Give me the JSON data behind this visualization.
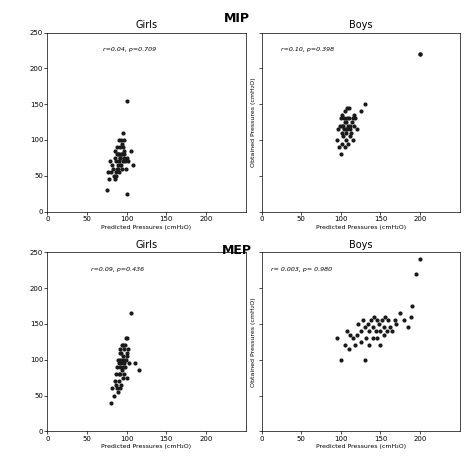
{
  "title_mip": "MIP",
  "title_mep": "MEP",
  "subplot_titles": [
    "Girls",
    "Boys",
    "Girls",
    "Boys"
  ],
  "annotations": [
    "r=0.04, p=0.709",
    "r=0.10, p=0.398",
    "r=0.09, p=0.436",
    "r= 0.003, p= 0.980"
  ],
  "xlabel": "Predicted Pressures (cmH₂O)",
  "ylabel": "Obtained Pressures (cmH₂O)",
  "xlim": [
    0,
    250
  ],
  "ylim": [
    0,
    250
  ],
  "xticks": [
    0,
    50,
    100,
    150,
    200
  ],
  "yticks": [
    0,
    50,
    100,
    150,
    200,
    250
  ],
  "marker_color": "#1a1a1a",
  "marker_size": 9,
  "background_color": "#ffffff",
  "mip_girls_x": [
    75,
    76,
    78,
    79,
    80,
    82,
    83,
    84,
    85,
    85,
    85,
    86,
    87,
    87,
    88,
    88,
    88,
    89,
    89,
    89,
    90,
    90,
    90,
    90,
    91,
    91,
    92,
    92,
    93,
    93,
    93,
    94,
    94,
    94,
    95,
    95,
    95,
    96,
    96,
    97,
    97,
    98,
    99,
    100,
    100,
    101,
    102,
    105,
    108
  ],
  "mip_girls_y": [
    30,
    55,
    45,
    70,
    55,
    65,
    60,
    50,
    45,
    75,
    85,
    50,
    70,
    55,
    80,
    60,
    90,
    60,
    65,
    80,
    70,
    80,
    55,
    100,
    75,
    90,
    65,
    75,
    100,
    65,
    80,
    60,
    80,
    95,
    70,
    90,
    110,
    100,
    85,
    80,
    75,
    70,
    60,
    25,
    155,
    75,
    70,
    85,
    65
  ],
  "mip_boys_x": [
    95,
    97,
    98,
    99,
    100,
    100,
    101,
    101,
    102,
    102,
    103,
    103,
    104,
    104,
    105,
    105,
    105,
    106,
    106,
    107,
    107,
    108,
    108,
    108,
    109,
    109,
    110,
    110,
    111,
    111,
    112,
    113,
    114,
    115,
    115,
    116,
    117,
    118,
    120,
    125,
    130,
    200
  ],
  "mip_boys_y": [
    100,
    115,
    90,
    120,
    80,
    130,
    95,
    110,
    120,
    135,
    105,
    120,
    115,
    130,
    90,
    125,
    140,
    100,
    115,
    110,
    125,
    115,
    130,
    145,
    95,
    120,
    130,
    145,
    105,
    120,
    115,
    110,
    125,
    100,
    130,
    120,
    135,
    130,
    115,
    140,
    150,
    220
  ],
  "mep_girls_x": [
    80,
    82,
    84,
    85,
    86,
    87,
    88,
    88,
    89,
    89,
    90,
    90,
    90,
    91,
    91,
    91,
    92,
    92,
    92,
    93,
    93,
    93,
    94,
    94,
    94,
    95,
    95,
    95,
    95,
    96,
    96,
    97,
    97,
    98,
    98,
    99,
    99,
    100,
    100,
    100,
    101,
    102,
    103,
    105,
    110,
    115
  ],
  "mep_girls_y": [
    40,
    60,
    50,
    70,
    65,
    80,
    60,
    90,
    55,
    100,
    70,
    80,
    95,
    60,
    90,
    110,
    80,
    100,
    115,
    65,
    95,
    110,
    85,
    100,
    120,
    75,
    90,
    105,
    120,
    80,
    95,
    100,
    115,
    90,
    120,
    100,
    130,
    75,
    110,
    130,
    105,
    115,
    95,
    165,
    95,
    85
  ],
  "mep_boys_x": [
    95,
    100,
    105,
    108,
    110,
    112,
    115,
    118,
    120,
    122,
    125,
    126,
    128,
    130,
    130,
    132,
    134,
    135,
    136,
    138,
    140,
    140,
    142,
    144,
    145,
    146,
    148,
    150,
    150,
    152,
    154,
    155,
    156,
    158,
    160,
    162,
    165,
    168,
    170,
    175,
    180,
    185,
    188,
    190,
    195,
    200
  ],
  "mep_boys_y": [
    130,
    100,
    120,
    140,
    115,
    135,
    130,
    120,
    135,
    150,
    125,
    140,
    155,
    100,
    145,
    130,
    150,
    120,
    140,
    155,
    130,
    145,
    160,
    140,
    155,
    130,
    150,
    120,
    140,
    155,
    135,
    145,
    160,
    140,
    155,
    145,
    140,
    155,
    150,
    165,
    155,
    145,
    160,
    175,
    220,
    240
  ]
}
